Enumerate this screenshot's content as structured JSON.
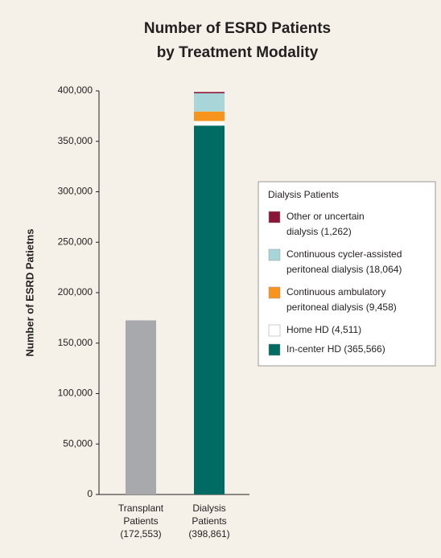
{
  "chart_data": {
    "type": "stacked-bar",
    "title": [
      "Number of ESRD Patients",
      "by Treatment Modality"
    ],
    "y_label": "Number of ESRD Patietns",
    "categories": [
      [
        "Transplant",
        "Patients",
        "(172,553)"
      ],
      [
        "Dialysis",
        "Patients",
        "(398,861)"
      ]
    ],
    "series": [
      {
        "color": "#a7a9ac",
        "values": [
          172553,
          null
        ]
      },
      {
        "name": [
          "In-center HD (365,566)"
        ],
        "color": "#006b63",
        "values": [
          null,
          365566
        ]
      },
      {
        "name": [
          "Home HD (4,511)"
        ],
        "color": "#ffffff",
        "values": [
          null,
          4511
        ]
      },
      {
        "name": [
          "Continuous ambulatory",
          "peritoneal dialysis (9,458)"
        ],
        "color": "#f7941d",
        "values": [
          null,
          9458
        ]
      },
      {
        "name": [
          "Continuous cycler-assisted",
          "peritoneal dialysis (18,064)"
        ],
        "color": "#a8d5d8",
        "values": [
          null,
          18064
        ]
      },
      {
        "name": [
          "Other or uncertain",
          "dialysis (1,262)"
        ],
        "color": "#8b1538",
        "values": [
          null,
          1262
        ]
      }
    ],
    "legend_title": "Dialysis Patients",
    "ylim": [
      0,
      400000
    ],
    "yticks": [
      0,
      {
        "value": 50000,
        "label": "50,000"
      },
      {
        "value": 100000,
        "label": "100,000"
      },
      {
        "value": 150000,
        "label": "150,000"
      },
      {
        "value": 200000,
        "label": "200,000"
      },
      {
        "value": 250000,
        "label": "250,000"
      },
      {
        "value": 300000,
        "label": "300,000"
      },
      {
        "value": 350000,
        "label": "350,000"
      },
      {
        "value": 400000,
        "label": "400,000"
      }
    ]
  }
}
